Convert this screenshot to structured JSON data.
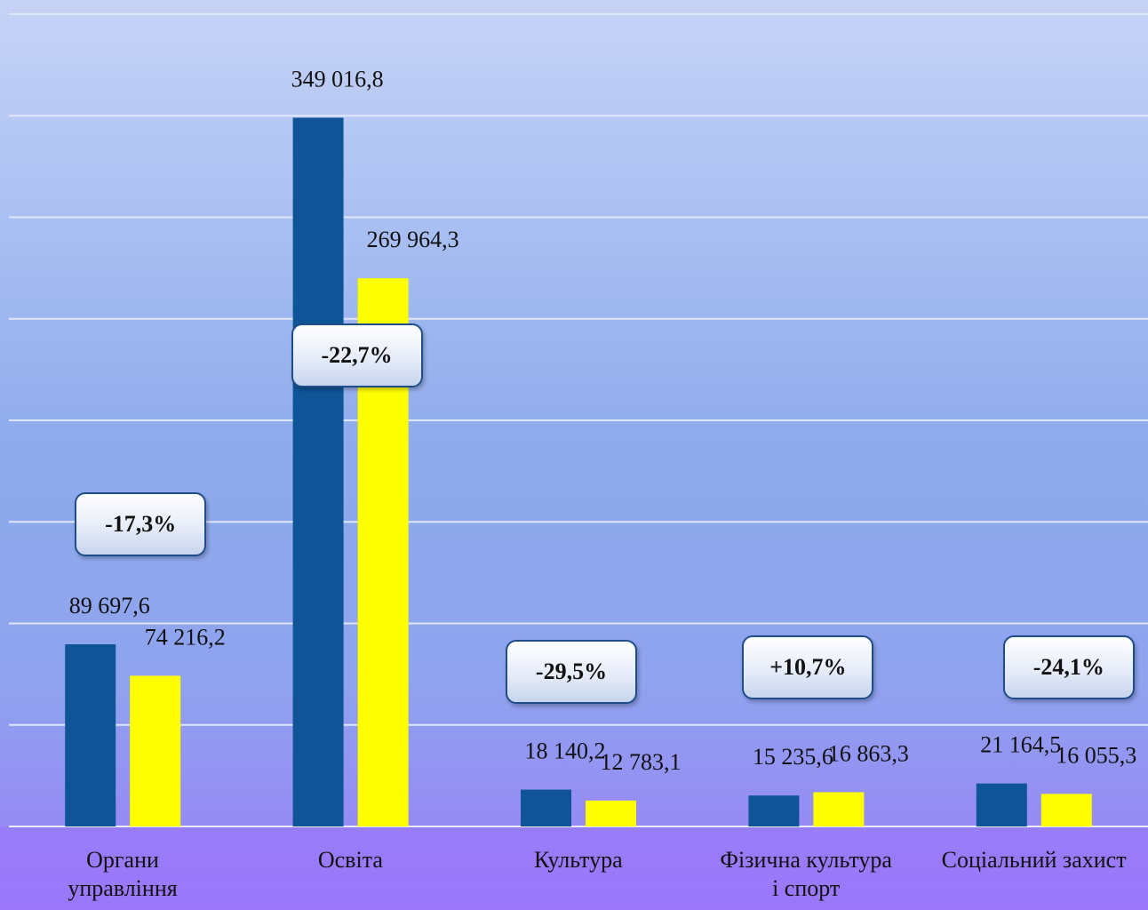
{
  "chart_data": {
    "type": "bar",
    "categories": [
      "Органи\nуправління",
      "Освіта",
      "Культура",
      "Фізична культура\nі спорт",
      "Соціальний захист"
    ],
    "series": [
      {
        "color": "#0e5497",
        "values": [
          89697.6,
          349016.8,
          18140.2,
          15235.6,
          21164.5
        ],
        "value_labels": [
          "89 697,6",
          "349 016,8",
          "18 140,2",
          "15 235,6",
          "21 164,5"
        ]
      },
      {
        "color": "#ffff00",
        "values": [
          74216.2,
          269964.3,
          12783.1,
          16863.3,
          16055.3
        ],
        "value_labels": [
          "74 216,2",
          "269 964,3",
          "12 783,1",
          "16 863,3",
          "16 055,3"
        ]
      }
    ],
    "annotations": [
      "-17,3%",
      "-22,7%",
      "-29,5%",
      "+10,7%",
      "-24,1%"
    ],
    "ylim": [
      0,
      400000
    ],
    "yticks": [
      0,
      50000,
      100000,
      150000,
      200000,
      250000,
      300000,
      350000,
      400000
    ],
    "grid": true
  }
}
